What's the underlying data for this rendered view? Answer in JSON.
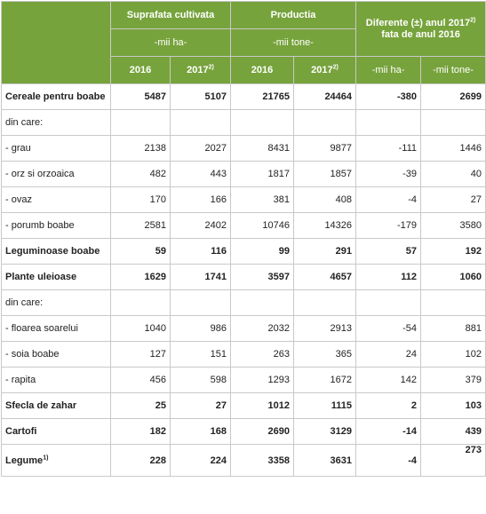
{
  "header": {
    "group1": "Suprafata cultivata",
    "group1_unit": "-mii ha-",
    "group2": "Productia",
    "group2_unit": "-mii tone-",
    "group3_line1": "Diferente (±) anul 2017",
    "group3_line1_sup": "2)",
    "group3_line2": "fata de anul 2016",
    "years": {
      "y2016": "2016",
      "y2017": "2017",
      "y2017_sup": "2)"
    },
    "diff_units": {
      "ha": "-mii ha-",
      "tone": "-mii tone-"
    }
  },
  "rows": [
    {
      "label": "Cereale pentru boabe",
      "bold": true,
      "values": [
        "5487",
        "5107",
        "21765",
        "24464",
        "-380",
        "2699"
      ]
    },
    {
      "label": "din care:",
      "bold": false,
      "values": [
        "",
        "",
        "",
        "",
        "",
        ""
      ]
    },
    {
      "label": " - grau",
      "bold": false,
      "values": [
        "2138",
        "2027",
        "8431",
        "9877",
        "-111",
        "1446"
      ]
    },
    {
      "label": " - orz si orzoaica",
      "bold": false,
      "values": [
        "482",
        "443",
        "1817",
        "1857",
        "-39",
        "40"
      ]
    },
    {
      "label": " - ovaz",
      "bold": false,
      "values": [
        "170",
        "166",
        "381",
        "408",
        "-4",
        "27"
      ]
    },
    {
      "label": " - porumb boabe",
      "bold": false,
      "values": [
        "2581",
        "2402",
        "10746",
        "14326",
        "-179",
        "3580"
      ]
    },
    {
      "label": "Leguminoase boabe",
      "bold": true,
      "values": [
        "59",
        "116",
        "99",
        "291",
        "57",
        "192"
      ]
    },
    {
      "label": "Plante uleioase",
      "bold": true,
      "values": [
        "1629",
        "1741",
        "3597",
        "4657",
        "112",
        "1060"
      ]
    },
    {
      "label": "din care:",
      "bold": false,
      "values": [
        "",
        "",
        "",
        "",
        "",
        ""
      ]
    },
    {
      "label": " - floarea soarelui",
      "bold": false,
      "values": [
        "1040",
        "986",
        "2032",
        "2913",
        "-54",
        "881"
      ]
    },
    {
      "label": " - soia boabe",
      "bold": false,
      "values": [
        "127",
        "151",
        "263",
        "365",
        "24",
        "102"
      ]
    },
    {
      "label": " - rapita",
      "bold": false,
      "values": [
        "456",
        "598",
        "1293",
        "1672",
        "142",
        "379"
      ]
    },
    {
      "label": "Sfecla de zahar",
      "bold": true,
      "values": [
        "25",
        "27",
        "1012",
        "1115",
        "2",
        "103"
      ]
    },
    {
      "label": "Cartofi",
      "bold": true,
      "values": [
        "182",
        "168",
        "2690",
        "3129",
        "-14",
        "439"
      ]
    },
    {
      "label": "Legume",
      "label_sup": "1)",
      "bold": true,
      "values": [
        "228",
        "224",
        "3358",
        "3631",
        "-4",
        "273"
      ]
    }
  ],
  "colors": {
    "header_bg": "#77a33c",
    "header_text": "#ffffff",
    "border": "#c9c9c9"
  }
}
